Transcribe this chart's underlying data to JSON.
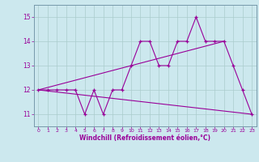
{
  "title": "",
  "xlabel": "Windchill (Refroidissement éolien,°C)",
  "bg_color": "#cce8ee",
  "line_color": "#990099",
  "grid_color": "#aacccc",
  "spine_color": "#7799aa",
  "xlim": [
    -0.5,
    23.5
  ],
  "ylim": [
    10.5,
    15.5
  ],
  "yticks": [
    11,
    12,
    13,
    14,
    15
  ],
  "xticks": [
    0,
    1,
    2,
    3,
    4,
    5,
    6,
    7,
    8,
    9,
    10,
    11,
    12,
    13,
    14,
    15,
    16,
    17,
    18,
    19,
    20,
    21,
    22,
    23
  ],
  "line1_x": [
    0,
    1,
    2,
    3,
    4,
    5,
    6,
    7,
    8,
    9,
    10,
    11,
    12,
    13,
    14,
    15,
    16,
    17,
    18,
    19,
    20,
    21,
    22,
    23
  ],
  "line1_y": [
    12,
    12,
    12,
    12,
    12,
    11,
    12,
    11,
    12,
    12,
    13,
    14,
    14,
    13,
    13,
    14,
    14,
    15,
    14,
    14,
    14,
    13,
    12,
    11
  ],
  "line2_x": [
    0,
    20
  ],
  "line2_y": [
    12,
    14
  ],
  "line3_x": [
    0,
    23
  ],
  "line3_y": [
    12,
    11
  ]
}
